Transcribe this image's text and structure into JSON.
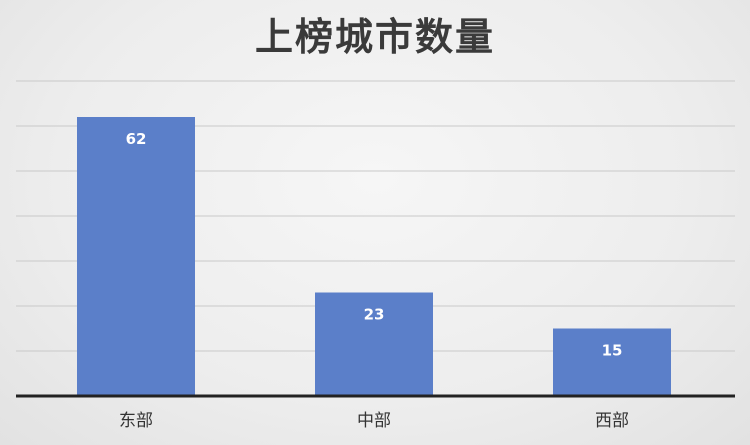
{
  "chart_data": {
    "type": "bar",
    "title": "上榜城市数量",
    "categories": [
      "东部",
      "中部",
      "西部"
    ],
    "values": [
      62,
      23,
      15
    ],
    "xlabel": "",
    "ylabel": "",
    "ylim": [
      0,
      70
    ],
    "grid": true,
    "legend": "none",
    "bar_color": "#5b7fc9",
    "data_labels": true
  }
}
